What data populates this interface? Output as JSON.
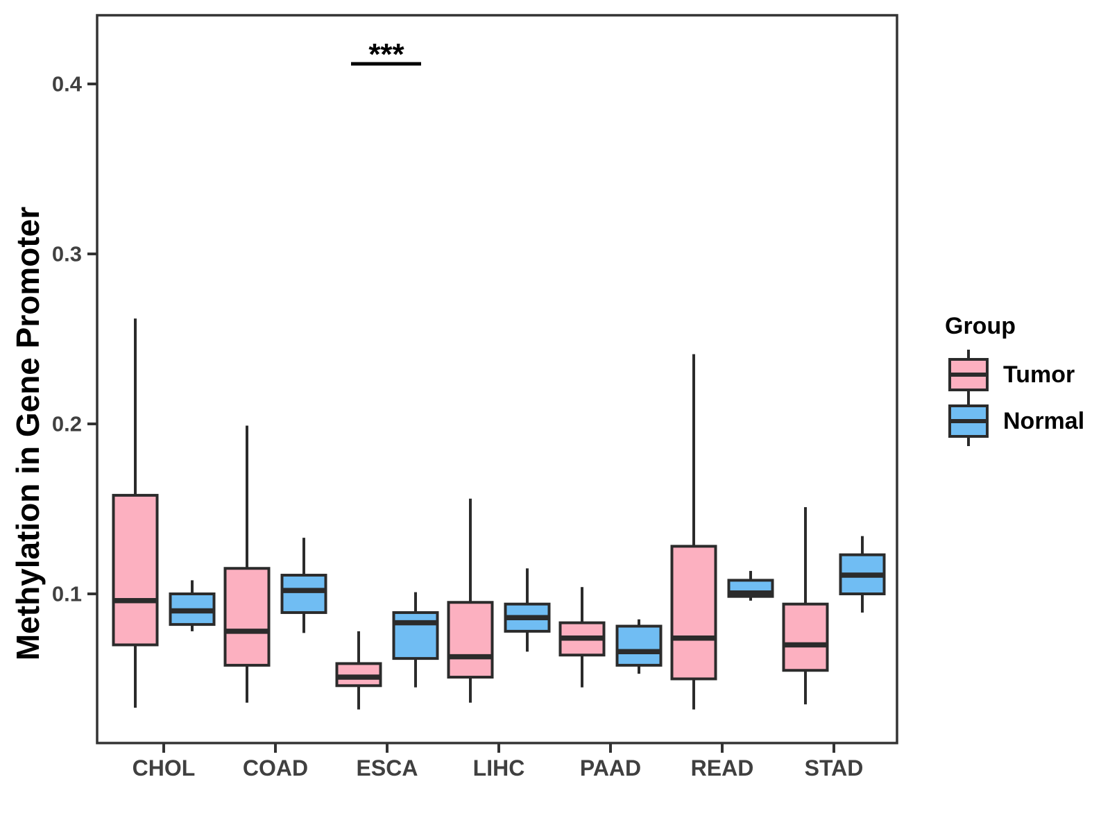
{
  "figure": {
    "y_axis": {
      "title": "Methylation in Gene Promoter",
      "tick_labels": [
        "0.1",
        "0.2",
        "0.3",
        "0.4"
      ],
      "tick_values": [
        0.1,
        0.2,
        0.3,
        0.4
      ]
    },
    "x_axis": {
      "categories": [
        "CHOL",
        "COAD",
        "ESCA",
        "LIHC",
        "PAAD",
        "READ",
        "STAD"
      ]
    },
    "legend": {
      "title": "Group",
      "entries": [
        {
          "label": "Tumor",
          "color": "#FCB0C0"
        },
        {
          "label": "Normal",
          "color": "#70BDF3"
        }
      ]
    },
    "annotation": {
      "label": "***",
      "category": "ESCA"
    }
  },
  "chart_data": {
    "type": "boxplot",
    "title": "",
    "xlabel": "",
    "ylabel": "Methylation in Gene Promoter",
    "ylim": [
      0.012,
      0.44
    ],
    "y_ticks": [
      0.1,
      0.2,
      0.3,
      0.4
    ],
    "grid": false,
    "legend_position": "right",
    "categories": [
      "CHOL",
      "COAD",
      "ESCA",
      "LIHC",
      "PAAD",
      "READ",
      "STAD"
    ],
    "groups": [
      "Tumor",
      "Normal"
    ],
    "colors": {
      "Tumor": "#FCB0C0",
      "Normal": "#70BDF3"
    },
    "stroke_color": "#2B2B2B",
    "series": [
      {
        "name": "Tumor",
        "boxes": [
          {
            "category": "CHOL",
            "low": 0.033,
            "q1": 0.07,
            "median": 0.096,
            "q3": 0.158,
            "high": 0.262
          },
          {
            "category": "COAD",
            "low": 0.036,
            "q1": 0.058,
            "median": 0.078,
            "q3": 0.115,
            "high": 0.199
          },
          {
            "category": "ESCA",
            "low": 0.032,
            "q1": 0.046,
            "median": 0.051,
            "q3": 0.059,
            "high": 0.078
          },
          {
            "category": "LIHC",
            "low": 0.036,
            "q1": 0.051,
            "median": 0.063,
            "q3": 0.095,
            "high": 0.156
          },
          {
            "category": "PAAD",
            "low": 0.045,
            "q1": 0.064,
            "median": 0.074,
            "q3": 0.083,
            "high": 0.104
          },
          {
            "category": "READ",
            "low": 0.032,
            "q1": 0.05,
            "median": 0.074,
            "q3": 0.128,
            "high": 0.241
          },
          {
            "category": "STAD",
            "low": 0.035,
            "q1": 0.055,
            "median": 0.07,
            "q3": 0.094,
            "high": 0.151
          }
        ]
      },
      {
        "name": "Normal",
        "boxes": [
          {
            "category": "CHOL",
            "low": 0.078,
            "q1": 0.082,
            "median": 0.09,
            "q3": 0.1,
            "high": 0.108
          },
          {
            "category": "COAD",
            "low": 0.077,
            "q1": 0.089,
            "median": 0.102,
            "q3": 0.111,
            "high": 0.133
          },
          {
            "category": "ESCA",
            "low": 0.045,
            "q1": 0.062,
            "median": 0.083,
            "q3": 0.089,
            "high": 0.101
          },
          {
            "category": "LIHC",
            "low": 0.066,
            "q1": 0.078,
            "median": 0.086,
            "q3": 0.094,
            "high": 0.115
          },
          {
            "category": "PAAD",
            "low": 0.053,
            "q1": 0.058,
            "median": 0.066,
            "q3": 0.081,
            "high": 0.085
          },
          {
            "category": "READ",
            "low": 0.096,
            "q1": 0.0985,
            "median": 0.1005,
            "q3": 0.108,
            "high": 0.1135
          },
          {
            "category": "STAD",
            "low": 0.089,
            "q1": 0.1,
            "median": 0.111,
            "q3": 0.123,
            "high": 0.134
          }
        ]
      }
    ],
    "significance": [
      {
        "category": "ESCA",
        "label": "***"
      }
    ]
  }
}
